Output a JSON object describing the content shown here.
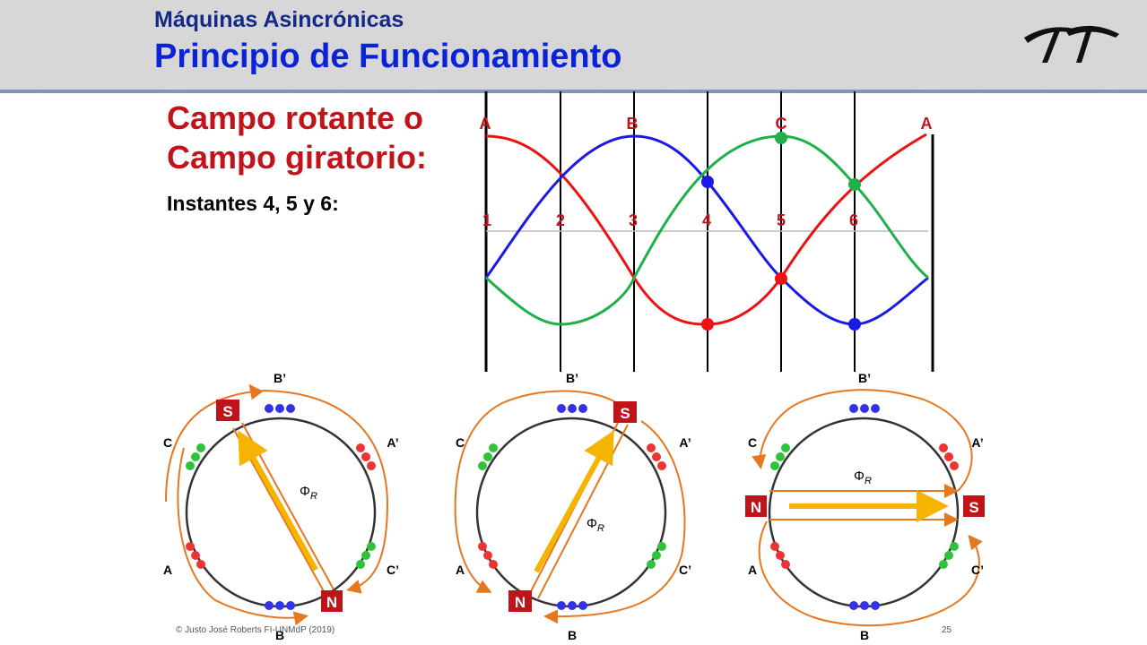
{
  "header": {
    "subtitle": "Máquinas Asincrónicas",
    "title": "Principio de Funcionamiento",
    "logo_icon": "university-logo-icon"
  },
  "content": {
    "section_title_line1": "Campo rotante o",
    "section_title_line2": "Campo giratorio:",
    "instants_label": "Instantes 4, 5 y 6:"
  },
  "waveform": {
    "phase_labels": [
      "A",
      "B",
      "C",
      "A"
    ],
    "instant_labels": [
      "1",
      "2",
      "3",
      "4",
      "5",
      "6"
    ],
    "colors": {
      "A": "#ee1111",
      "B": "#1a1ae6",
      "C": "#1fb04a",
      "label": "#c0141a"
    }
  },
  "phasors": [
    {
      "top": "B’",
      "bottom": "B",
      "left_top": "C",
      "left_bottom": "A",
      "right_top": "A’",
      "right_bottom": "C’",
      "pole_s": "S",
      "pole_n": "N",
      "flux": "Φ",
      "flux_sub": "R"
    },
    {
      "top": "B’",
      "bottom": "B",
      "left_top": "C",
      "left_bottom": "A",
      "right_top": "A’",
      "right_bottom": "C’",
      "pole_s": "S",
      "pole_n": "N",
      "flux": "Φ",
      "flux_sub": "R"
    },
    {
      "top": "B’",
      "bottom": "B",
      "left_top": "C",
      "left_bottom": "A",
      "right_top": "A’",
      "right_bottom": "C’",
      "pole_s": "S",
      "pole_n": "N",
      "flux": "Φ",
      "flux_sub": "R"
    }
  ],
  "footer": {
    "copyright": "© Justo José Roberts FI-UNMdP (2019)",
    "page_number": "25"
  }
}
